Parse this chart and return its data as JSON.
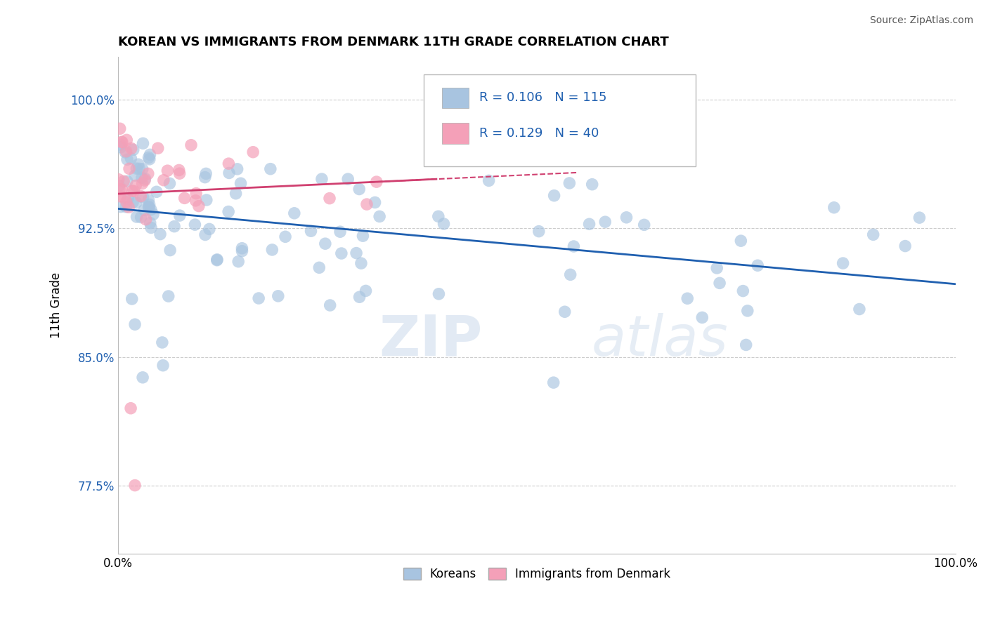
{
  "title": "KOREAN VS IMMIGRANTS FROM DENMARK 11TH GRADE CORRELATION CHART",
  "source_text": "Source: ZipAtlas.com",
  "ylabel": "11th Grade",
  "x_tick_labels": [
    "0.0%",
    "100.0%"
  ],
  "y_tick_labels": [
    "77.5%",
    "85.0%",
    "92.5%",
    "100.0%"
  ],
  "y_tick_values": [
    0.775,
    0.85,
    0.925,
    1.0
  ],
  "xlim": [
    0.0,
    1.0
  ],
  "ylim": [
    0.735,
    1.025
  ],
  "blue_R": 0.106,
  "blue_N": 115,
  "pink_R": 0.129,
  "pink_N": 40,
  "blue_color": "#a8c4e0",
  "blue_line_color": "#2060b0",
  "pink_color": "#f4a0b8",
  "pink_line_color": "#d04070",
  "legend_label_blue": "Koreans",
  "legend_label_pink": "Immigrants from Denmark",
  "watermark_zip": "ZIP",
  "watermark_atlas": "atlas",
  "background_color": "#ffffff",
  "title_fontsize": 13,
  "seed": 7
}
